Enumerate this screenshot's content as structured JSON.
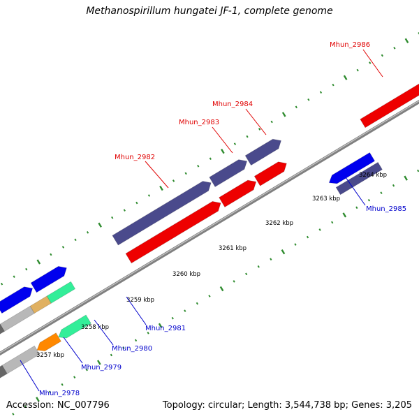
{
  "title": "Methanospirillum hungatei JF-1, complete genome",
  "footer": {
    "accession": "Accession: NC_007796",
    "summary": "Topology: circular; Length: 3,544,738 bp; Genes: 3,205"
  },
  "scale": {
    "labels": [
      "3257 kbp",
      "3258 kbp",
      "3259 kbp",
      "3260 kbp",
      "3261 kbp",
      "3262 kbp",
      "3263 kbp",
      "3264 kbp"
    ]
  },
  "colors": {
    "forward_label": "#e00000",
    "reverse_label": "#0000cc",
    "backbone": "#808080",
    "tick": "#2e8b2e",
    "gene_blue": "#0000ee",
    "gene_red": "#ee0000",
    "gene_purple": "#4a4a8c",
    "gene_green": "#33ee99",
    "gene_orange": "#ff8800",
    "gene_grey": "#b8b8b8",
    "gene_darkgrey": "#666666"
  },
  "genes": {
    "forward": [
      "Mhun_2982",
      "Mhun_2983",
      "Mhun_2984",
      "Mhun_2986"
    ],
    "reverse": [
      "Mhun_2978",
      "Mhun_2979",
      "Mhun_2980",
      "Mhun_2981",
      "Mhun_2985"
    ]
  }
}
